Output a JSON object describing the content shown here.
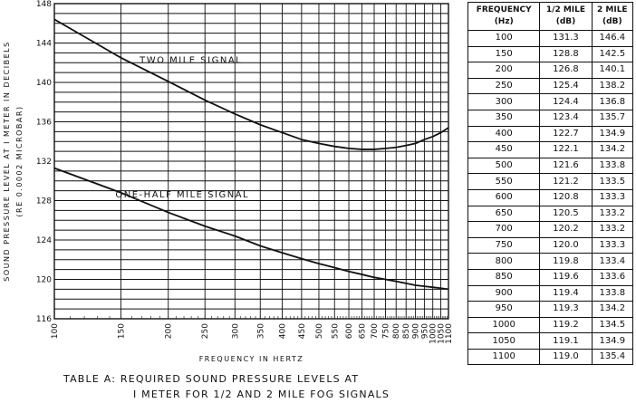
{
  "chart_data": {
    "type": "line",
    "x_scale": "log",
    "xlim": [
      100,
      1100
    ],
    "ylim": [
      116,
      148
    ],
    "x_ticks": [
      100,
      150,
      200,
      250,
      300,
      350,
      400,
      450,
      500,
      550,
      600,
      650,
      700,
      750,
      800,
      850,
      900,
      950,
      1000,
      1050,
      1100
    ],
    "x_tick_labels": [
      "100",
      "150",
      "200",
      "250",
      "300",
      "350",
      "400",
      "450",
      "500",
      "550",
      "600",
      "650",
      "700",
      "750",
      "800",
      "850",
      "900",
      "950",
      "1000",
      "1050",
      "1100"
    ],
    "y_ticks": [
      116,
      120,
      124,
      128,
      132,
      136,
      140,
      144,
      148
    ],
    "y_tick_labels": [
      "116",
      "120",
      "124",
      "128",
      "132",
      "136",
      "140",
      "144",
      "148"
    ],
    "xlabel": "FREQUENCY IN HERTZ",
    "ylabel": "SOUND PRESSURE LEVEL AT I METER IN DECIBELS",
    "ylabel2": "(RE 0.0002 MICROBAR)",
    "grid": true,
    "series": [
      {
        "name": "TWO MILE SIGNAL",
        "x": [
          100,
          150,
          200,
          250,
          300,
          350,
          400,
          450,
          500,
          550,
          600,
          650,
          700,
          750,
          800,
          850,
          900,
          950,
          1000,
          1050,
          1100
        ],
        "values": [
          146.4,
          142.5,
          140.1,
          138.2,
          136.8,
          135.7,
          134.9,
          134.2,
          133.8,
          133.5,
          133.3,
          133.2,
          133.2,
          133.3,
          133.4,
          133.6,
          133.8,
          134.2,
          134.5,
          134.9,
          135.4
        ]
      },
      {
        "name": "ONE-HALF MILE SIGNAL",
        "x": [
          100,
          150,
          200,
          250,
          300,
          350,
          400,
          450,
          500,
          550,
          600,
          650,
          700,
          750,
          800,
          850,
          900,
          950,
          1000,
          1050,
          1100
        ],
        "values": [
          131.3,
          128.8,
          126.8,
          125.4,
          124.4,
          123.4,
          122.7,
          122.1,
          121.6,
          121.2,
          120.8,
          120.5,
          120.2,
          120.0,
          119.8,
          119.6,
          119.4,
          119.3,
          119.2,
          119.1,
          119.0
        ]
      }
    ]
  },
  "table": {
    "headers": [
      [
        "FREQUENCY",
        "(Hz)"
      ],
      [
        "1/2 MILE",
        "(dB)"
      ],
      [
        "2 MILE",
        "(dB)"
      ]
    ],
    "rows": [
      [
        "100",
        "131.3",
        "146.4"
      ],
      [
        "150",
        "128.8",
        "142.5"
      ],
      [
        "200",
        "126.8",
        "140.1"
      ],
      [
        "250",
        "125.4",
        "138.2"
      ],
      [
        "300",
        "124.4",
        "136.8"
      ],
      [
        "350",
        "123.4",
        "135.7"
      ],
      [
        "400",
        "122.7",
        "134.9"
      ],
      [
        "450",
        "122.1",
        "134.2"
      ],
      [
        "500",
        "121.6",
        "133.8"
      ],
      [
        "550",
        "121.2",
        "133.5"
      ],
      [
        "600",
        "120.8",
        "133.3"
      ],
      [
        "650",
        "120.5",
        "133.2"
      ],
      [
        "700",
        "120.2",
        "133.2"
      ],
      [
        "750",
        "120.0",
        "133.3"
      ],
      [
        "800",
        "119.8",
        "133.4"
      ],
      [
        "850",
        "119.6",
        "133.6"
      ],
      [
        "900",
        "119.4",
        "133.8"
      ],
      [
        "950",
        "119.3",
        "134.2"
      ],
      [
        "1000",
        "119.2",
        "134.5"
      ],
      [
        "1050",
        "119.1",
        "134.9"
      ],
      [
        "1100",
        "119.0",
        "135.4"
      ]
    ]
  },
  "caption": {
    "line1": "TABLE A:  REQUIRED SOUND PRESSURE LEVELS AT",
    "line2": "I METER  FOR  1/2  AND  2  MILE  FOG  SIGNALS"
  }
}
